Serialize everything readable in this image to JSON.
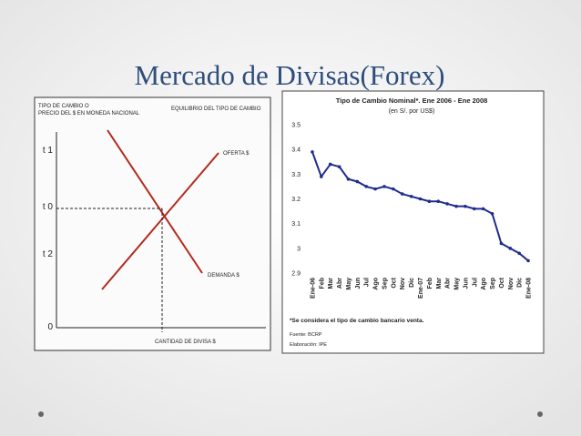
{
  "title": "Mercado de Divisas(Forex)",
  "diagram": {
    "y_axis_label_1": "TIPO DE CAMBIO O",
    "y_axis_label_2": "PRECIO DEL $ EN MONEDA NACIONAL",
    "header": "EQUILIBRIO DEL TIPO DE CAMBIO",
    "t1": "t 1",
    "t0": "t 0",
    "t2": "t 2",
    "origin": "0",
    "supply": "OFERTA $",
    "demand": "DEMANDA $",
    "x_axis_label": "CANTIDAD DE DIVISA $"
  },
  "chart_data": {
    "type": "line",
    "title": "Tipo de Cambio Nominal*. Ene 2006 - Ene 2008",
    "subtitle": "(en S/. por US$)",
    "categories": [
      "Ene-06",
      "Feb",
      "Mar",
      "Abr",
      "May",
      "Jun",
      "Jul",
      "Ago",
      "Sep",
      "Oct",
      "Nov",
      "Dic",
      "Ene-07",
      "Feb",
      "Mar",
      "Abr",
      "May",
      "Jun",
      "Jul",
      "Ago",
      "Sep",
      "Oct",
      "Nov",
      "Dic",
      "Ene-08"
    ],
    "values": [
      3.39,
      3.29,
      3.34,
      3.33,
      3.28,
      3.27,
      3.25,
      3.24,
      3.25,
      3.24,
      3.22,
      3.21,
      3.2,
      3.19,
      3.19,
      3.18,
      3.17,
      3.17,
      3.16,
      3.16,
      3.14,
      3.02,
      3.0,
      2.98,
      2.95
    ],
    "color": "#1f2d8c",
    "ylim": [
      2.9,
      3.5
    ],
    "yticks": [
      2.9,
      3,
      3.1,
      3.2,
      3.3,
      3.4,
      3.5
    ],
    "notes": [
      "*Se considera el tipo de cambio bancario venta.",
      "Fuente: BCRP",
      "Elaboración: IPE"
    ]
  }
}
